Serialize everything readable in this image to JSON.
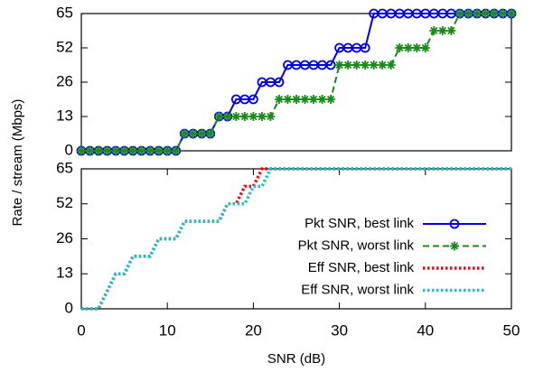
{
  "chart_data": [
    {
      "type": "line",
      "ylabel": "Rate / stream (Mbps)",
      "x": [
        0,
        1,
        2,
        3,
        4,
        5,
        6,
        7,
        8,
        9,
        10,
        11,
        12,
        13,
        14,
        15,
        16,
        17,
        18,
        19,
        20,
        21,
        22,
        23,
        24,
        25,
        26,
        27,
        28,
        29,
        30,
        31,
        32,
        33,
        34,
        35,
        36,
        37,
        38,
        39,
        40,
        41,
        42,
        43,
        44,
        45,
        46,
        47,
        48,
        49,
        50
      ],
      "xlim": [
        0,
        50
      ],
      "ylim": [
        0,
        65
      ],
      "yticks": [
        0,
        13,
        26,
        52,
        65
      ],
      "series": [
        {
          "name": "Pkt SNR, best link",
          "color": "#0000e0",
          "dash": "solid",
          "marker": "circle",
          "values": [
            0,
            0,
            0,
            0,
            0,
            0,
            0,
            0,
            0,
            0,
            0,
            0,
            6.5,
            6.5,
            6.5,
            6.5,
            13,
            13,
            19.5,
            19.5,
            19.5,
            26,
            26,
            26,
            39,
            39,
            39,
            39,
            39,
            39,
            52,
            52,
            52,
            52,
            65,
            65,
            65,
            65,
            65,
            65,
            65,
            65,
            65,
            65,
            65,
            65,
            65,
            65,
            65,
            65,
            65
          ]
        },
        {
          "name": "Pkt SNR, worst link",
          "color": "#1a8a1a",
          "dash": "dashed",
          "marker": "asterisk",
          "values": [
            0,
            0,
            0,
            0,
            0,
            0,
            0,
            0,
            0,
            0,
            0,
            0,
            6.5,
            6.5,
            6.5,
            6.5,
            13,
            13,
            13,
            13,
            13,
            13,
            13,
            19.5,
            19.5,
            19.5,
            19.5,
            19.5,
            19.5,
            19.5,
            39,
            39,
            39,
            39,
            39,
            39,
            39,
            52,
            52,
            52,
            52,
            58.5,
            58.5,
            58.5,
            65,
            65,
            65,
            65,
            65,
            65,
            65
          ]
        }
      ]
    },
    {
      "type": "line",
      "xlabel": "SNR (dB)",
      "x": [
        0,
        1,
        2,
        3,
        4,
        5,
        6,
        7,
        8,
        9,
        10,
        11,
        12,
        13,
        14,
        15,
        16,
        17,
        18,
        19,
        20,
        21,
        22,
        23,
        24,
        25,
        26,
        27,
        28,
        29,
        30,
        31,
        32,
        33,
        34,
        35,
        36,
        37,
        38,
        39,
        40,
        41,
        42,
        43,
        44,
        45,
        46,
        47,
        48,
        49,
        50
      ],
      "xlim": [
        0,
        50
      ],
      "xticks": [
        0,
        10,
        20,
        30,
        40,
        50
      ],
      "ylim": [
        0,
        65
      ],
      "yticks": [
        0,
        13,
        26,
        52,
        65
      ],
      "series": [
        {
          "name": "Eff SNR, best link",
          "color": "#e01010",
          "dash": "dotted",
          "values": [
            0,
            0,
            0,
            6.5,
            13,
            13,
            19.5,
            19.5,
            19.5,
            26,
            26,
            26,
            39,
            39,
            39,
            39,
            39,
            52,
            52,
            58.5,
            58.5,
            65,
            65,
            65,
            65,
            65,
            65,
            65,
            65,
            65,
            65,
            65,
            65,
            65,
            65,
            65,
            65,
            65,
            65,
            65,
            65,
            65,
            65,
            65,
            65,
            65,
            65,
            65,
            65,
            65,
            65
          ]
        },
        {
          "name": "Eff SNR, worst link",
          "color": "#20c0c8",
          "dash": "dotted",
          "values": [
            0,
            0,
            0,
            6.5,
            13,
            13,
            19.5,
            19.5,
            19.5,
            26,
            26,
            26,
            39,
            39,
            39,
            39,
            39,
            52,
            52,
            52,
            58.5,
            58.5,
            65,
            65,
            65,
            65,
            65,
            65,
            65,
            65,
            65,
            65,
            65,
            65,
            65,
            65,
            65,
            65,
            65,
            65,
            65,
            65,
            65,
            65,
            65,
            65,
            65,
            65,
            65,
            65,
            65
          ]
        }
      ]
    }
  ]
}
